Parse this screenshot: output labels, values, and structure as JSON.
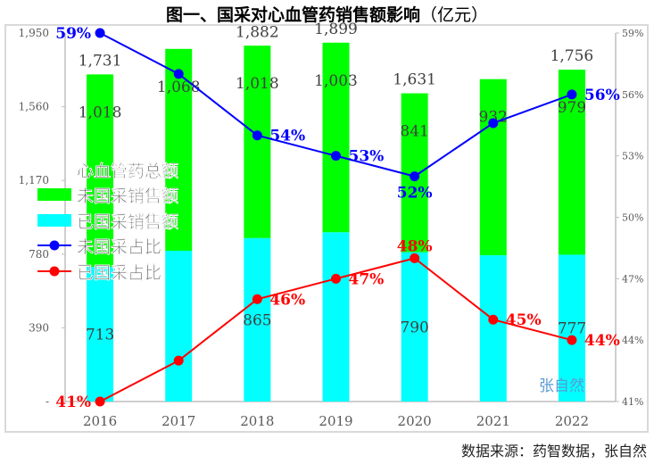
{
  "chart_data": {
    "type": "bar",
    "title": "图一、国采对心血管药销售额影响",
    "title_unit": "（亿元）",
    "categories": [
      "2016",
      "2017",
      "2018",
      "2019",
      "2020",
      "2021",
      "2022"
    ],
    "series": [
      {
        "name": "心血管药总额",
        "kind": "total-label",
        "values": [
          1731,
          1866,
          1882,
          1899,
          1631,
          1706,
          1756
        ],
        "labels": [
          "1,731",
          "",
          "1,882",
          "1,899",
          "1,631",
          "",
          "1,756"
        ]
      },
      {
        "name": "未国采销售额",
        "kind": "bar-stacked",
        "color": "#00ff00",
        "values": [
          1018,
          1068,
          1018,
          1003,
          841,
          932,
          979
        ],
        "labels": [
          "1,018",
          "1,068",
          "1,018",
          "1,003",
          "841",
          "932",
          "979"
        ]
      },
      {
        "name": "已国采销售额",
        "kind": "bar-stacked",
        "color": "#00ffff",
        "values": [
          713,
          798,
          865,
          896,
          790,
          774,
          777
        ],
        "labels": [
          "713",
          "",
          "865",
          "",
          "790",
          "",
          "777"
        ]
      },
      {
        "name": "未国采占比",
        "kind": "line",
        "axis": "right",
        "color": "#0000ff",
        "values": [
          59,
          57,
          54,
          53,
          52,
          54.6,
          56
        ],
        "labels": [
          "59%",
          "",
          "54%",
          "53%",
          "52%",
          "",
          "56%"
        ]
      },
      {
        "name": "已国采占比",
        "kind": "line",
        "axis": "right",
        "color": "#ff0000",
        "values": [
          41,
          43,
          46,
          47,
          48,
          45,
          44
        ],
        "labels": [
          "41%",
          "",
          "46%",
          "47%",
          "48%",
          "45%",
          "44%"
        ]
      }
    ],
    "y_left": {
      "range": [
        0,
        1950
      ],
      "ticks": [
        "-",
        "390",
        "780",
        "1,170",
        "1,560",
        "1,950"
      ]
    },
    "y_right": {
      "range": [
        41,
        59
      ],
      "ticks": [
        "41%",
        "44%",
        "47%",
        "50%",
        "53%",
        "56%",
        "59%"
      ]
    },
    "legend": {
      "placement": "left-middle"
    },
    "grid": false
  },
  "source": "数据来源：药智数据，张自然",
  "watermark": "张自然"
}
